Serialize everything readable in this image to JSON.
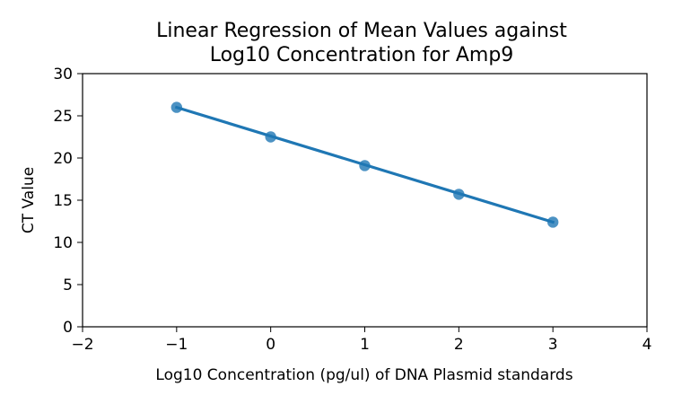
{
  "chart_data": {
    "type": "scatter",
    "title_line1": "Linear Regression of Mean Values against",
    "title_line2": "Log10 Concentration for Amp9",
    "xlabel": "Log10 Concentration (pg/ul) of DNA Plasmid standards",
    "ylabel": "CT Value",
    "xlim": [
      -2,
      4
    ],
    "ylim": [
      0,
      30
    ],
    "x_ticks": [
      -2,
      -1,
      0,
      1,
      2,
      3,
      4
    ],
    "x_tick_labels": [
      "−2",
      "−1",
      "0",
      "1",
      "2",
      "3",
      "4"
    ],
    "y_ticks": [
      0,
      5,
      10,
      15,
      20,
      25,
      30
    ],
    "y_tick_labels": [
      "0",
      "5",
      "10",
      "15",
      "20",
      "25",
      "30"
    ],
    "series": [
      {
        "x": [
          -1,
          0,
          1,
          2,
          3
        ],
        "y": [
          26.0,
          22.5,
          19.1,
          15.7,
          12.4
        ],
        "color": "#1f77b4"
      }
    ],
    "regression": {
      "x": [
        -1,
        3
      ],
      "y": [
        26.0,
        12.4
      ],
      "color": "#1f77b4"
    },
    "grid": false
  }
}
